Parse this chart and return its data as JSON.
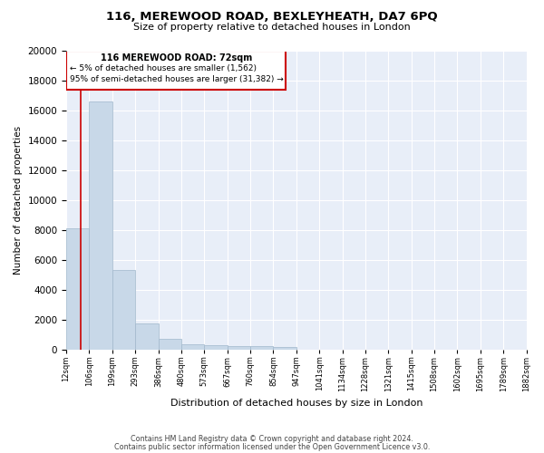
{
  "title": "116, MEREWOOD ROAD, BEXLEYHEATH, DA7 6PQ",
  "subtitle": "Size of property relative to detached houses in London",
  "xlabel": "Distribution of detached houses by size in London",
  "ylabel": "Number of detached properties",
  "bar_color": "#c8d8e8",
  "bar_edge_color": "#a0b8cc",
  "bg_color": "#e8eef8",
  "grid_color": "white",
  "annotation_box_color": "#cc0000",
  "annotation_line_color": "#cc0000",
  "property_bin_index": 0,
  "annotation_text_line1": "116 MEREWOOD ROAD: 72sqm",
  "annotation_text_line2": "← 5% of detached houses are smaller (1,562)",
  "annotation_text_line3": "95% of semi-detached houses are larger (31,382) →",
  "footer_line1": "Contains HM Land Registry data © Crown copyright and database right 2024.",
  "footer_line2": "Contains public sector information licensed under the Open Government Licence v3.0.",
  "bin_labels": [
    "12sqm",
    "106sqm",
    "199sqm",
    "293sqm",
    "386sqm",
    "480sqm",
    "573sqm",
    "667sqm",
    "760sqm",
    "854sqm",
    "947sqm",
    "1041sqm",
    "1134sqm",
    "1228sqm",
    "1321sqm",
    "1415sqm",
    "1508sqm",
    "1602sqm",
    "1695sqm",
    "1789sqm",
    "1882sqm"
  ],
  "bar_heights": [
    8100,
    16600,
    5300,
    1750,
    700,
    350,
    280,
    220,
    200,
    170,
    0,
    0,
    0,
    0,
    0,
    0,
    0,
    0,
    0,
    0
  ],
  "ylim": [
    0,
    20000
  ],
  "yticks": [
    0,
    2000,
    4000,
    6000,
    8000,
    10000,
    12000,
    14000,
    16000,
    18000,
    20000
  ],
  "n_bars": 20,
  "n_ticks": 21
}
